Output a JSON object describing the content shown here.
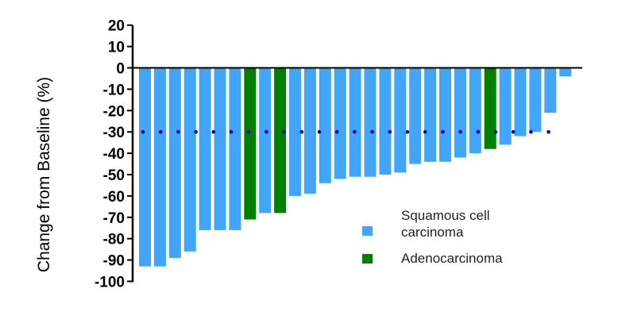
{
  "chart_data": {
    "type": "bar",
    "subtype": "waterfall",
    "title": "",
    "xlabel": "",
    "ylabel": "Change from Baseline (%)",
    "ylim": [
      -100,
      20
    ],
    "yticks": [
      20,
      10,
      0,
      -10,
      -20,
      -30,
      -40,
      -50,
      -60,
      -70,
      -80,
      -90,
      -100
    ],
    "grid": false,
    "reference_line": {
      "value": -30,
      "style": "dotted",
      "color": "#0000cc"
    },
    "legend_position": "bottom-right",
    "legend": [
      {
        "label_lines": [
          "Squamous cell",
          "carcinoma"
        ],
        "color": "#42a5f5"
      },
      {
        "label_lines": [
          "Adenocarcinoma"
        ],
        "color": "#008000"
      }
    ],
    "colors": {
      "Squamous cell carcinoma": "#42a5f5",
      "Adenocarcinoma": "#008000"
    },
    "values": [
      -93,
      -93,
      -89,
      -86,
      -76,
      -76,
      -76,
      -71,
      -68,
      -68,
      -60,
      -59,
      -54,
      -52,
      -51,
      -51,
      -50,
      -49,
      -45,
      -44,
      -44,
      -42,
      -40,
      -38,
      -36,
      -32,
      -30,
      -21,
      -4
    ],
    "groups": [
      "S",
      "S",
      "S",
      "S",
      "S",
      "S",
      "S",
      "A",
      "S",
      "A",
      "S",
      "S",
      "S",
      "S",
      "S",
      "S",
      "S",
      "S",
      "S",
      "S",
      "S",
      "S",
      "S",
      "A",
      "S",
      "S",
      "S",
      "S",
      "S"
    ]
  }
}
